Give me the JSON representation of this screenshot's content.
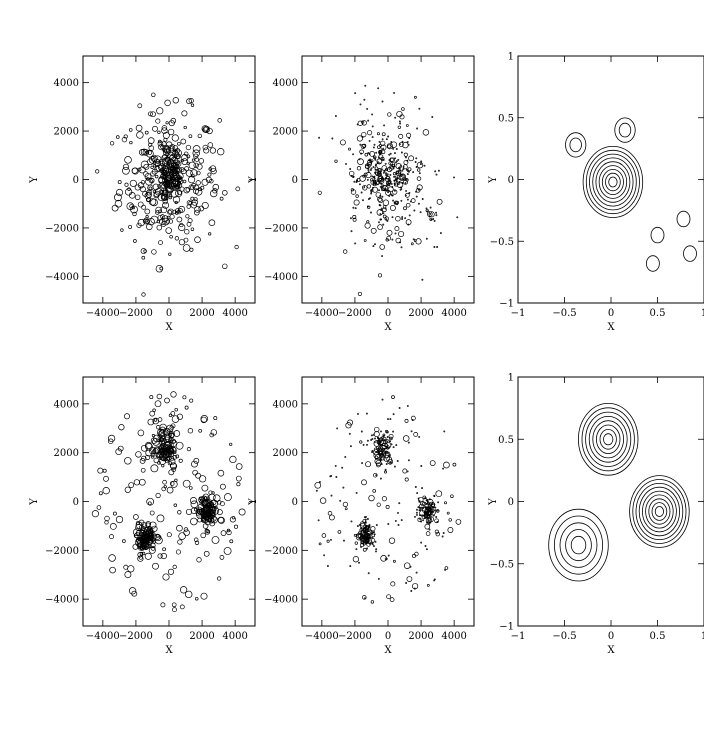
{
  "chart_data": [
    {
      "type": "scatter",
      "panel": "top-left",
      "xlabel": "X",
      "ylabel": "Y",
      "xlim": [
        -5200,
        5200
      ],
      "ylim": [
        -5100,
        5100
      ],
      "xticks": [
        -4000,
        -2000,
        0,
        2000,
        4000
      ],
      "yticks": [
        -4000,
        -2000,
        0,
        2000,
        4000
      ],
      "marker": "open circle, size varies",
      "distribution": "centrally concentrated field of ~400 points, core near (0,0) with sigma ~1800"
    },
    {
      "type": "scatter",
      "panel": "top-middle",
      "xlabel": "X",
      "ylabel": "Y",
      "xlim": [
        -5200,
        5200
      ],
      "ylim": [
        -5100,
        5100
      ],
      "xticks": [
        -4000,
        -2000,
        0,
        2000,
        4000
      ],
      "yticks": [
        -4000,
        -2000,
        0,
        2000,
        4000
      ],
      "marker": "open circle, size varies (many dot-sized)",
      "distribution": "same field with smaller markers; dense core near (0,0), small groups near (-1000,800) and (2600,-1500)"
    },
    {
      "type": "contour",
      "panel": "top-right",
      "xlabel": "X",
      "ylabel": "Y",
      "xlim": [
        -1,
        1
      ],
      "ylim": [
        -1,
        1
      ],
      "xticks": [
        -1,
        -0.5,
        0,
        0.5,
        1
      ],
      "xtick_labels": [
        "-1",
        "-0.5",
        "0",
        "0.5",
        "1"
      ],
      "yticks": [
        -1,
        -0.5,
        0,
        0.5,
        1
      ],
      "ytick_labels": [
        "-1",
        "-0.5",
        "0",
        "0.5",
        "1"
      ],
      "peaks": [
        {
          "x": 0.02,
          "y": -0.02,
          "levels": 9
        },
        {
          "x": 0.15,
          "y": 0.4,
          "levels": 2
        },
        {
          "x": -0.38,
          "y": 0.28,
          "levels": 2
        },
        {
          "x": 0.5,
          "y": -0.45,
          "levels": 1
        },
        {
          "x": 0.78,
          "y": -0.32,
          "levels": 1
        },
        {
          "x": 0.45,
          "y": -0.68,
          "levels": 1
        },
        {
          "x": 0.85,
          "y": -0.6,
          "levels": 1
        }
      ]
    },
    {
      "type": "scatter",
      "panel": "bottom-left",
      "xlabel": "X",
      "ylabel": "Y",
      "xlim": [
        -5200,
        5200
      ],
      "ylim": [
        -5100,
        5100
      ],
      "xticks": [
        -4000,
        -2000,
        0,
        2000,
        4000
      ],
      "yticks": [
        -4000,
        -2000,
        0,
        2000,
        4000
      ],
      "marker": "open circle, size varies",
      "clusters": [
        {
          "x": -300,
          "y": 2200,
          "sigma": 420
        },
        {
          "x": 2300,
          "y": -400,
          "sigma": 320
        },
        {
          "x": -1400,
          "y": -1500,
          "sigma": 280
        }
      ],
      "background": "scattered field within radius ~4500"
    },
    {
      "type": "scatter",
      "panel": "bottom-middle",
      "xlabel": "X",
      "ylabel": "Y",
      "xlim": [
        -5200,
        5200
      ],
      "ylim": [
        -5100,
        5100
      ],
      "xticks": [
        -4000,
        -2000,
        0,
        2000,
        4000
      ],
      "yticks": [
        -4000,
        -2000,
        0,
        2000,
        4000
      ],
      "marker": "open circle, size varies (many dot-sized)",
      "clusters": [
        {
          "x": -300,
          "y": 2200,
          "sigma": 380
        },
        {
          "x": 2400,
          "y": -300,
          "sigma": 300
        },
        {
          "x": -1300,
          "y": -1400,
          "sigma": 250
        }
      ],
      "background": "sparse dots"
    },
    {
      "type": "contour",
      "panel": "bottom-right",
      "xlabel": "X",
      "ylabel": "Y",
      "xlim": [
        -1,
        1
      ],
      "ylim": [
        -1,
        1
      ],
      "xticks": [
        -1,
        -0.5,
        0,
        0.5,
        1
      ],
      "xtick_labels": [
        "-1",
        "-0.5",
        "0",
        "0.5",
        "1"
      ],
      "yticks": [
        -1,
        -0.5,
        0,
        0.5,
        1
      ],
      "ytick_labels": [
        "-1",
        "-0.5",
        "0",
        "0.5",
        "1"
      ],
      "peaks": [
        {
          "x": -0.03,
          "y": 0.5,
          "levels": 8
        },
        {
          "x": 0.52,
          "y": -0.08,
          "levels": 9
        },
        {
          "x": -0.35,
          "y": -0.35,
          "levels": 5
        }
      ]
    }
  ]
}
